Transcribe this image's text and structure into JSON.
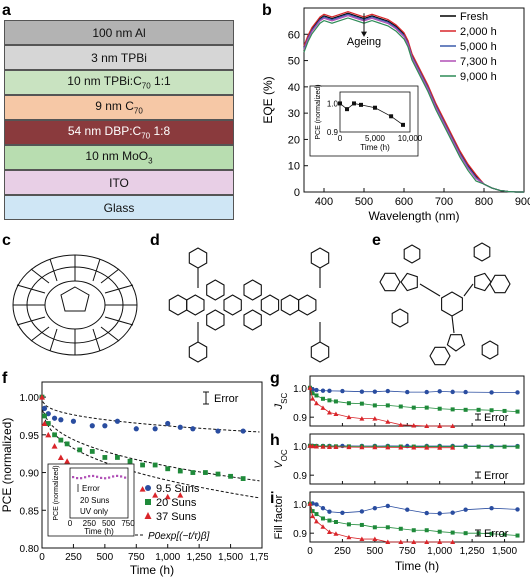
{
  "panels": {
    "a": "a",
    "b": "b",
    "c": "c",
    "d": "d",
    "e": "e",
    "f": "f",
    "g": "g",
    "h": "h",
    "i": "i"
  },
  "stack": [
    {
      "label": "100 nm Al",
      "color": "#b3b3b3"
    },
    {
      "label": "3 nm TPBi",
      "color": "#d6d6d6"
    },
    {
      "label": "10 nm TPBi:C70 1:1",
      "color": "#c9e3c1"
    },
    {
      "label": "9 nm C70",
      "color": "#f6c8a6"
    },
    {
      "label": "54 nm DBP:C70 1:8",
      "color": "#8a3a3d",
      "text_color": "#ffffff"
    },
    {
      "label": "10 nm MoO3",
      "color": "#b8ddb0"
    },
    {
      "label": "ITO",
      "color": "#e8cfe6"
    },
    {
      "label": "Glass",
      "color": "#cfe6f5"
    }
  ],
  "panel_b": {
    "chart_data": {
      "type": "line",
      "xlabel": "Wavelength (nm)",
      "ylabel": "EQE (%)",
      "xlim": [
        350,
        900
      ],
      "ylim": [
        0,
        70
      ],
      "xticks": [
        400,
        500,
        600,
        700,
        800,
        900
      ],
      "yticks": [
        0,
        10,
        20,
        30,
        40,
        50,
        60
      ],
      "annotation": "Ageing",
      "legend_position": "top-right",
      "series": [
        {
          "name": "Fresh",
          "color": "#000000",
          "offset": 0
        },
        {
          "name": "2,000 h",
          "color": "#d9252a",
          "offset": 0.6
        },
        {
          "name": "5,000 h",
          "color": "#3b5bab",
          "offset": -0.4
        },
        {
          "name": "7,300 h",
          "color": "#b04fb6",
          "offset": -0.9
        },
        {
          "name": "9,000 h",
          "color": "#2e8b57",
          "offset": -1.8
        }
      ],
      "base_curve": {
        "x": [
          350,
          360,
          370,
          380,
          390,
          400,
          420,
          440,
          460,
          480,
          500,
          520,
          540,
          560,
          580,
          600,
          610,
          620,
          640,
          660,
          680,
          700,
          720,
          740,
          760,
          780,
          800,
          820,
          840,
          860,
          880,
          900
        ],
        "y": [
          55,
          59,
          62,
          64,
          66,
          67,
          66,
          67,
          68,
          67,
          66,
          67,
          66,
          65,
          63,
          60,
          57,
          52,
          46,
          40,
          33,
          27,
          21,
          15,
          10,
          6,
          3,
          1.5,
          0.6,
          0.2,
          0,
          0
        ]
      },
      "inset": {
        "xlabel": "Time (h)",
        "ylabel": "PCE (normalized)",
        "xlim": [
          0,
          10000
        ],
        "ylim": [
          0.9,
          1.04
        ],
        "xticks": [
          0,
          5000,
          10000
        ],
        "xtick_labels": [
          "0",
          "5,000",
          "10,000"
        ],
        "yticks": [
          0.9,
          1.0
        ],
        "ytick_labels": [
          "0.9",
          "1.0"
        ],
        "x": [
          0,
          1000,
          2000,
          3000,
          5000,
          7300,
          9000
        ],
        "y": [
          1.0,
          0.98,
          1.0,
          0.995,
          0.985,
          0.955,
          0.925
        ]
      }
    }
  },
  "panel_f": {
    "chart_data": {
      "type": "scatter",
      "xlabel": "Time (h)",
      "ylabel": "PCE (normalized)",
      "xlim": [
        0,
        1750
      ],
      "ylim": [
        0.8,
        1.02
      ],
      "xticks": [
        0,
        250,
        500,
        750,
        1000,
        1250,
        1500,
        1750
      ],
      "xtick_labels": [
        "0",
        "250",
        "500",
        "750",
        "1,000",
        "1,250",
        "1,500",
        "1,750"
      ],
      "yticks": [
        0.8,
        0.85,
        0.9,
        0.95,
        1.0
      ],
      "ytick_labels": [
        "0.80",
        "0.85",
        "0.90",
        "0.95",
        "1.00"
      ],
      "error_label": "Error",
      "fit_label": "P0exp[(−t/τ)β]",
      "series": [
        {
          "name": "9.5 Suns",
          "color": "#2a4da0",
          "marker": "circle",
          "x": [
            0,
            20,
            50,
            100,
            150,
            250,
            400,
            500,
            600,
            750,
            900,
            1000,
            1100,
            1200,
            1400,
            1600
          ],
          "y": [
            1.0,
            0.985,
            0.978,
            0.972,
            0.97,
            0.968,
            0.962,
            0.962,
            0.968,
            0.958,
            0.958,
            0.965,
            0.96,
            0.958,
            0.955,
            0.955
          ]
        },
        {
          "name": "20 Suns",
          "color": "#1f8a3a",
          "marker": "square",
          "x": [
            0,
            20,
            50,
            100,
            150,
            200,
            300,
            400,
            500,
            600,
            700,
            800,
            900,
            1000,
            1100,
            1200,
            1300,
            1400,
            1500,
            1600
          ],
          "y": [
            1.0,
            0.975,
            0.965,
            0.95,
            0.943,
            0.938,
            0.93,
            0.928,
            0.92,
            0.92,
            0.915,
            0.91,
            0.91,
            0.905,
            0.902,
            0.9,
            0.9,
            0.898,
            0.895,
            0.892
          ]
        },
        {
          "name": "37 Suns",
          "color": "#d9252a",
          "marker": "triangle",
          "x": [
            0,
            20,
            50,
            100,
            150,
            200,
            300,
            400,
            500,
            600,
            700,
            800,
            900,
            1000,
            1100
          ],
          "y": [
            1.0,
            0.965,
            0.95,
            0.935,
            0.92,
            0.915,
            0.905,
            0.9,
            0.9,
            0.89,
            0.88,
            0.878,
            0.87,
            0.868,
            0.87
          ]
        }
      ],
      "inset": {
        "xlabel": "Time (h)",
        "ylabel": "PCE (normalized)",
        "xticks": [
          0,
          250,
          500,
          750
        ],
        "xtick_labels": [
          "0",
          "250",
          "500",
          "750"
        ],
        "label_error": "Error",
        "label_suns": "20 Suns",
        "label_uv": "UV only"
      }
    }
  },
  "panel_ghi": {
    "xlabel": "Time (h)",
    "xlim": [
      0,
      1650
    ],
    "xticks": [
      0,
      250,
      500,
      750,
      1000,
      1250,
      1500
    ],
    "xtick_labels": [
      "0",
      "250",
      "500",
      "750",
      "1,000",
      "1,250",
      "1,500"
    ],
    "error_label": "Error",
    "rows": [
      {
        "ylabel": "J_SC",
        "ylabel_main": "J",
        "ylabel_sub": "SC",
        "yticks": [
          0.9,
          1.0
        ],
        "ytick_labels": [
          "0.9",
          "1.0"
        ],
        "ylim": [
          0.87,
          1.04
        ]
      },
      {
        "ylabel": "V_OC",
        "ylabel_main": "V",
        "ylabel_sub": "OC",
        "yticks": [
          0.9,
          1.0
        ],
        "ytick_labels": [
          "0.9",
          "1.0"
        ],
        "ylim": [
          0.87,
          1.04
        ]
      },
      {
        "ylabel": "Fill factor",
        "ylabel_main": "Fill factor",
        "ylabel_sub": "",
        "yticks": [
          0.9,
          1.0
        ],
        "ytick_labels": [
          "0.9",
          "1.0"
        ],
        "ylim": [
          0.87,
          1.04
        ]
      }
    ]
  }
}
